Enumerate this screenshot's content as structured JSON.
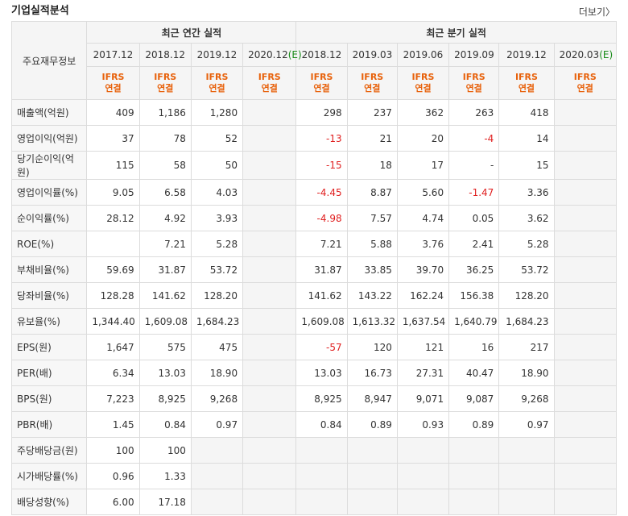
{
  "header": {
    "title": "기업실적분석",
    "more_label": "더보기"
  },
  "table": {
    "row_header_label": "주요재무정보",
    "group_annual": "최근 연간 실적",
    "group_quarter": "최근 분기 실적",
    "periods": [
      "2017.12",
      "2018.12",
      "2019.12",
      "2020.12(E)",
      "2018.12",
      "2019.03",
      "2019.06",
      "2019.09",
      "2019.12",
      "2020.03(E)"
    ],
    "ifrs_label": "IFRS",
    "ifrs_sub": "연결",
    "rows": [
      {
        "label": "매출액(억원)",
        "values": [
          "409",
          "1,186",
          "1,280",
          "",
          "298",
          "237",
          "362",
          "263",
          "418",
          ""
        ]
      },
      {
        "label": "영업이익(억원)",
        "values": [
          "37",
          "78",
          "52",
          "",
          "-13",
          "21",
          "20",
          "-4",
          "14",
          ""
        ]
      },
      {
        "label": "당기순이익(억원)",
        "values": [
          "115",
          "58",
          "50",
          "",
          "-15",
          "18",
          "17",
          "-",
          "15",
          ""
        ]
      },
      {
        "label": "영업이익률(%)",
        "values": [
          "9.05",
          "6.58",
          "4.03",
          "",
          "-4.45",
          "8.87",
          "5.60",
          "-1.47",
          "3.36",
          ""
        ]
      },
      {
        "label": "순이익률(%)",
        "values": [
          "28.12",
          "4.92",
          "3.93",
          "",
          "-4.98",
          "7.57",
          "4.74",
          "0.05",
          "3.62",
          ""
        ]
      },
      {
        "label": "ROE(%)",
        "values": [
          "",
          "7.21",
          "5.28",
          "",
          "7.21",
          "5.88",
          "3.76",
          "2.41",
          "5.28",
          ""
        ]
      },
      {
        "label": "부채비율(%)",
        "values": [
          "59.69",
          "31.87",
          "53.72",
          "",
          "31.87",
          "33.85",
          "39.70",
          "36.25",
          "53.72",
          ""
        ]
      },
      {
        "label": "당좌비율(%)",
        "values": [
          "128.28",
          "141.62",
          "128.20",
          "",
          "141.62",
          "143.22",
          "162.24",
          "156.38",
          "128.20",
          ""
        ]
      },
      {
        "label": "유보율(%)",
        "values": [
          "1,344.40",
          "1,609.08",
          "1,684.23",
          "",
          "1,609.08",
          "1,613.32",
          "1,637.54",
          "1,640.79",
          "1,684.23",
          ""
        ]
      },
      {
        "label": "EPS(원)",
        "values": [
          "1,647",
          "575",
          "475",
          "",
          "-57",
          "120",
          "121",
          "16",
          "217",
          ""
        ]
      },
      {
        "label": "PER(배)",
        "values": [
          "6.34",
          "13.03",
          "18.90",
          "",
          "13.03",
          "16.73",
          "27.31",
          "40.47",
          "18.90",
          ""
        ]
      },
      {
        "label": "BPS(원)",
        "values": [
          "7,223",
          "8,925",
          "9,268",
          "",
          "8,925",
          "8,947",
          "9,071",
          "9,087",
          "9,268",
          ""
        ]
      },
      {
        "label": "PBR(배)",
        "values": [
          "1.45",
          "0.84",
          "0.97",
          "",
          "0.84",
          "0.89",
          "0.93",
          "0.89",
          "0.97",
          ""
        ]
      },
      {
        "label": "주당배당금(원)",
        "values": [
          "100",
          "100",
          "",
          "",
          "",
          "",
          "",
          "",
          "",
          ""
        ]
      },
      {
        "label": "시가배당률(%)",
        "values": [
          "0.96",
          "1.33",
          "",
          "",
          "",
          "",
          "",
          "",
          "",
          ""
        ]
      },
      {
        "label": "배당성향(%)",
        "values": [
          "6.00",
          "17.18",
          "",
          "",
          "",
          "",
          "",
          "",
          "",
          ""
        ]
      }
    ]
  },
  "colors": {
    "negative": "#e02020",
    "ifrs": "#e8620c",
    "estimate": "#1a8c1a"
  }
}
